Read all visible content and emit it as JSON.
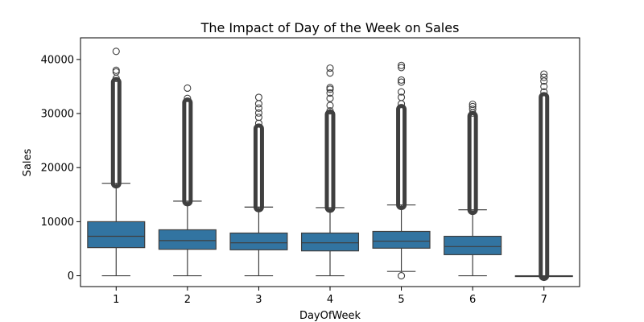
{
  "chart_data": {
    "type": "box",
    "title": "The Impact of Day of the Week on Sales",
    "xlabel": "DayOfWeek",
    "ylabel": "Sales",
    "categories": [
      "1",
      "2",
      "3",
      "4",
      "5",
      "6",
      "7"
    ],
    "ylim": [
      -2000,
      44000
    ],
    "yticks": [
      0,
      10000,
      20000,
      30000,
      40000
    ],
    "ytick_labels": [
      "0",
      "10000",
      "20000",
      "30000",
      "40000"
    ],
    "grid": false,
    "colors": {
      "box": "#3274a1",
      "edge": "#3f3f3f",
      "outlier": "#3f3f3f"
    },
    "boxes": [
      {
        "category": "1",
        "whisker_low": 0,
        "q1": 5200,
        "median": 7300,
        "q3": 10000,
        "whisker_high": 17100,
        "outlier_bands": [
          [
            17100,
            35800
          ]
        ],
        "outliers": [
          36500,
          37700,
          38000,
          41500
        ]
      },
      {
        "category": "2",
        "whisker_low": 0,
        "q1": 4900,
        "median": 6500,
        "q3": 8500,
        "whisker_high": 13800,
        "outlier_bands": [
          [
            13800,
            32000
          ]
        ],
        "outliers": [
          32800,
          34700
        ]
      },
      {
        "category": "3",
        "whisker_low": 0,
        "q1": 4800,
        "median": 6100,
        "q3": 7900,
        "whisker_high": 12700,
        "outlier_bands": [
          [
            12700,
            27200
          ]
        ],
        "outliers": [
          28200,
          29300,
          30100,
          31000,
          31800,
          33000
        ]
      },
      {
        "category": "4",
        "whisker_low": 0,
        "q1": 4600,
        "median": 6100,
        "q3": 7900,
        "whisker_high": 12600,
        "outlier_bands": [
          [
            12600,
            29800
          ]
        ],
        "outliers": [
          30500,
          31500,
          32800,
          33800,
          34500,
          34800,
          37500,
          38400
        ]
      },
      {
        "category": "5",
        "whisker_low": 800,
        "q1": 5100,
        "median": 6400,
        "q3": 8200,
        "whisker_high": 13100,
        "outlier_bands": [
          [
            13100,
            30800
          ]
        ],
        "outliers": [
          0,
          31800,
          33000,
          34000,
          35800,
          36200,
          38500,
          38900
        ]
      },
      {
        "category": "6",
        "whisker_low": 0,
        "q1": 3900,
        "median": 5400,
        "q3": 7300,
        "whisker_high": 12200,
        "outlier_bands": [
          [
            12200,
            29500
          ]
        ],
        "outliers": [
          30100,
          30800,
          31300,
          31700
        ]
      },
      {
        "category": "7",
        "whisker_low": 0,
        "q1": 0,
        "median": 0,
        "q3": 0,
        "whisker_high": 0,
        "outlier_bands": [
          [
            0,
            33000
          ]
        ],
        "outliers": [
          34000,
          35000,
          36000,
          36700,
          37300
        ]
      }
    ]
  }
}
